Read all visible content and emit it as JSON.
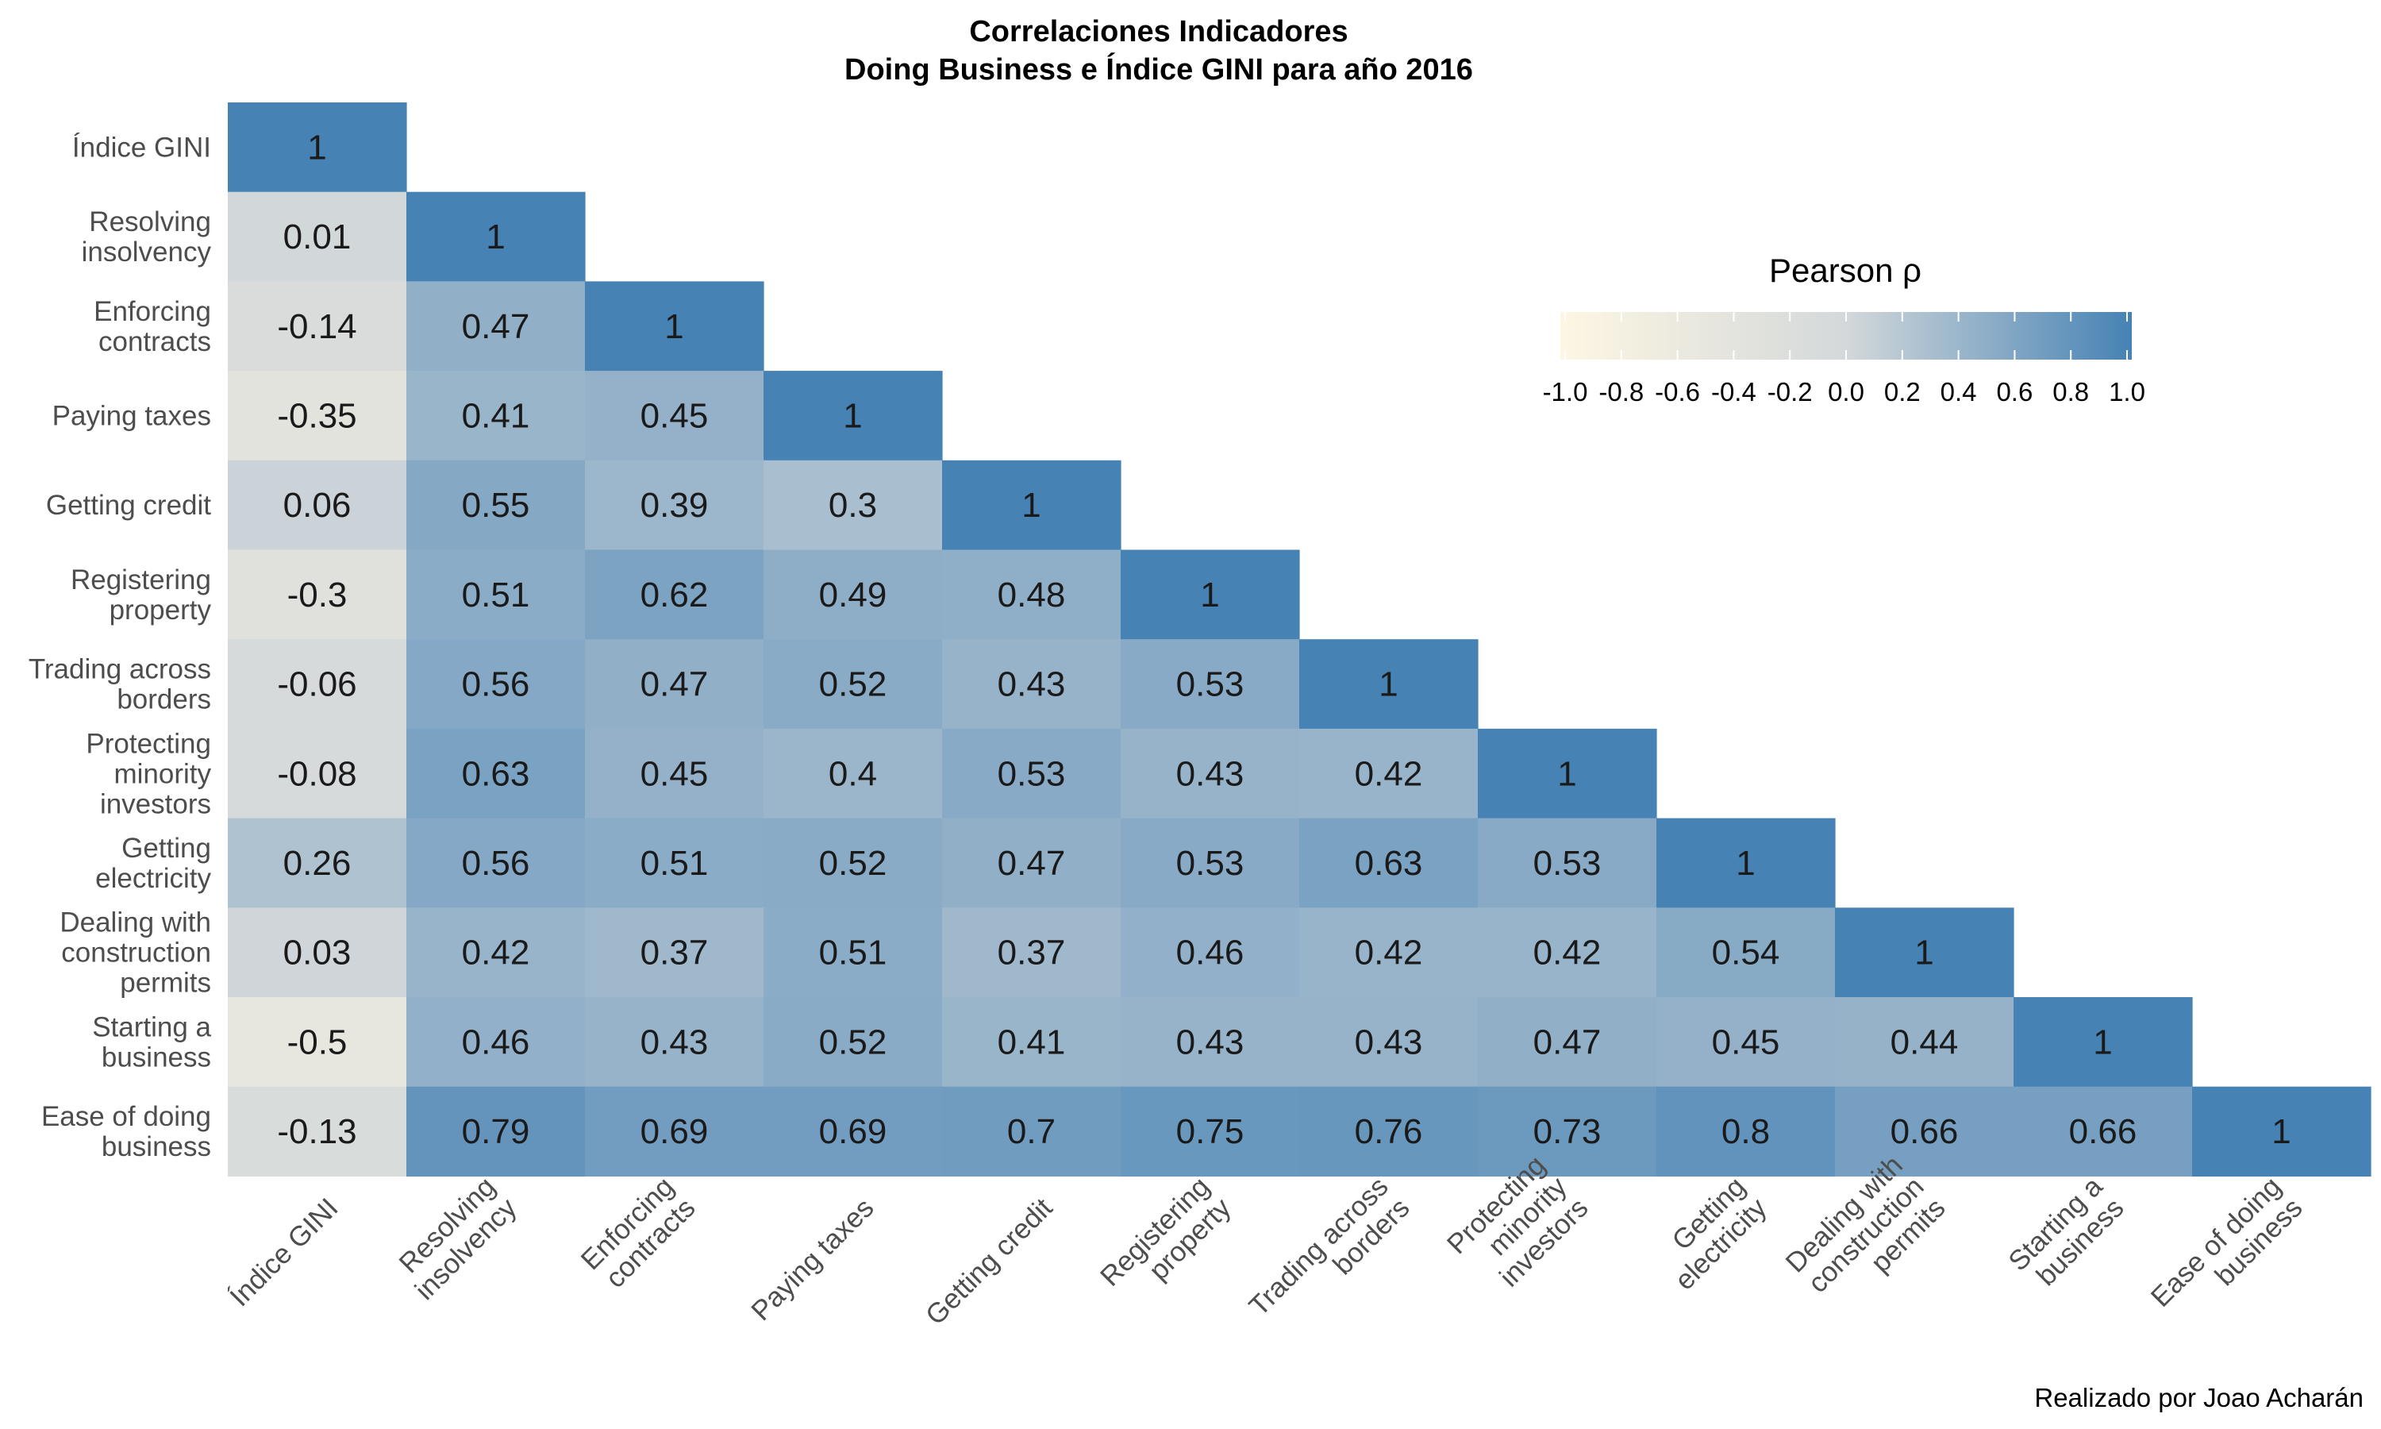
{
  "chart_data": {
    "type": "heatmap",
    "title": [
      "Correlaciones Indicadores",
      "Doing Business e Índice GINI para año 2016"
    ],
    "caption": "Realizado por Joao Acharán",
    "legend": {
      "title": "Pearson ρ",
      "placement": "top-right",
      "ticks": [
        "-1.0",
        "-0.8",
        "-0.6",
        "-0.4",
        "-0.2",
        "0.0",
        "0.2",
        "0.4",
        "0.6",
        "0.8",
        "1.0"
      ],
      "range": [
        -1,
        1
      ],
      "colors": {
        "low": "#fdf6e3",
        "mid": "#d3d8da",
        "high": "#4682b4"
      }
    },
    "rows": [
      [
        "Índice GINI"
      ],
      [
        "Resolving",
        "insolvency"
      ],
      [
        "Enforcing",
        "contracts"
      ],
      [
        "Paying taxes"
      ],
      [
        "Getting credit"
      ],
      [
        "Registering",
        "property"
      ],
      [
        "Trading across",
        "borders"
      ],
      [
        "Protecting",
        "minority",
        "investors"
      ],
      [
        "Getting",
        "electricity"
      ],
      [
        "Dealing with",
        "construction",
        "permits"
      ],
      [
        "Starting a",
        "business"
      ],
      [
        "Ease of doing",
        "business"
      ]
    ],
    "columns": [
      [
        "Índice GINI"
      ],
      [
        "Resolving",
        "insolvency"
      ],
      [
        "Enforcing",
        "contracts"
      ],
      [
        "Paying taxes"
      ],
      [
        "Getting credit"
      ],
      [
        "Registering",
        "property"
      ],
      [
        "Trading across",
        "borders"
      ],
      [
        "Protecting",
        "minority",
        "investors"
      ],
      [
        "Getting",
        "electricity"
      ],
      [
        "Dealing with",
        "construction",
        "permits"
      ],
      [
        "Starting a",
        "business"
      ],
      [
        "Ease of doing",
        "business"
      ]
    ],
    "values": [
      [
        1
      ],
      [
        0.01,
        1
      ],
      [
        -0.14,
        0.47,
        1
      ],
      [
        -0.35,
        0.41,
        0.45,
        1
      ],
      [
        0.06,
        0.55,
        0.39,
        0.3,
        1
      ],
      [
        -0.3,
        0.51,
        0.62,
        0.49,
        0.48,
        1
      ],
      [
        -0.06,
        0.56,
        0.47,
        0.52,
        0.43,
        0.53,
        1
      ],
      [
        -0.08,
        0.63,
        0.45,
        0.4,
        0.53,
        0.43,
        0.42,
        1
      ],
      [
        0.26,
        0.56,
        0.51,
        0.52,
        0.47,
        0.53,
        0.63,
        0.53,
        1
      ],
      [
        0.03,
        0.42,
        0.37,
        0.51,
        0.37,
        0.46,
        0.42,
        0.42,
        0.54,
        1
      ],
      [
        -0.5,
        0.46,
        0.43,
        0.52,
        0.41,
        0.43,
        0.43,
        0.47,
        0.45,
        0.44,
        1
      ],
      [
        -0.13,
        0.79,
        0.69,
        0.69,
        0.7,
        0.75,
        0.76,
        0.73,
        0.8,
        0.66,
        0.66,
        1
      ]
    ]
  }
}
